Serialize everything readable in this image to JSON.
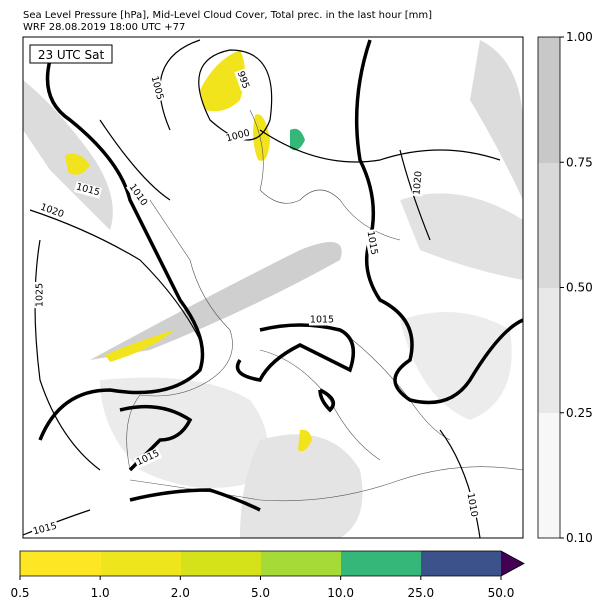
{
  "header": {
    "title": "Sea Level Pressure [hPa], Mid-Level Cloud Cover, Total prec. in the last hour [mm]",
    "subtitle": "WRF 28.08.2019 18:00 UTC +77"
  },
  "map": {
    "time_label": "23 UTC Sat",
    "contour_labels": [
      "1005",
      "995",
      "1000",
      "1015",
      "1010",
      "1020",
      "1025",
      "1015",
      "1020",
      "1015",
      "1015",
      "1010",
      "1015"
    ]
  },
  "cloud_colorbar": {
    "ticks": [
      "0.10",
      "0.25",
      "0.50",
      "0.75",
      "1.00"
    ]
  },
  "precip_colorbar": {
    "ticks": [
      "0.5",
      "1.0",
      "2.0",
      "5.0",
      "10.0",
      "25.0",
      "50.0"
    ]
  }
}
